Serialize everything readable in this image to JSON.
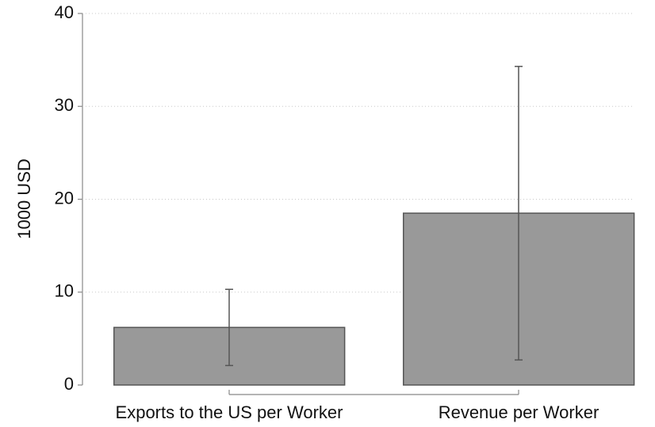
{
  "chart_data": {
    "type": "bar",
    "y_label": "1000 USD",
    "categories": [
      "Exports to the US per Worker",
      "Revenue per Worker"
    ],
    "values": [
      6.2,
      18.5
    ],
    "errors": [
      4.1,
      15.8
    ],
    "color": "#999999",
    "ylim": [
      0,
      40
    ],
    "yticks": [
      0,
      10,
      20,
      30,
      40
    ],
    "grid": true
  }
}
